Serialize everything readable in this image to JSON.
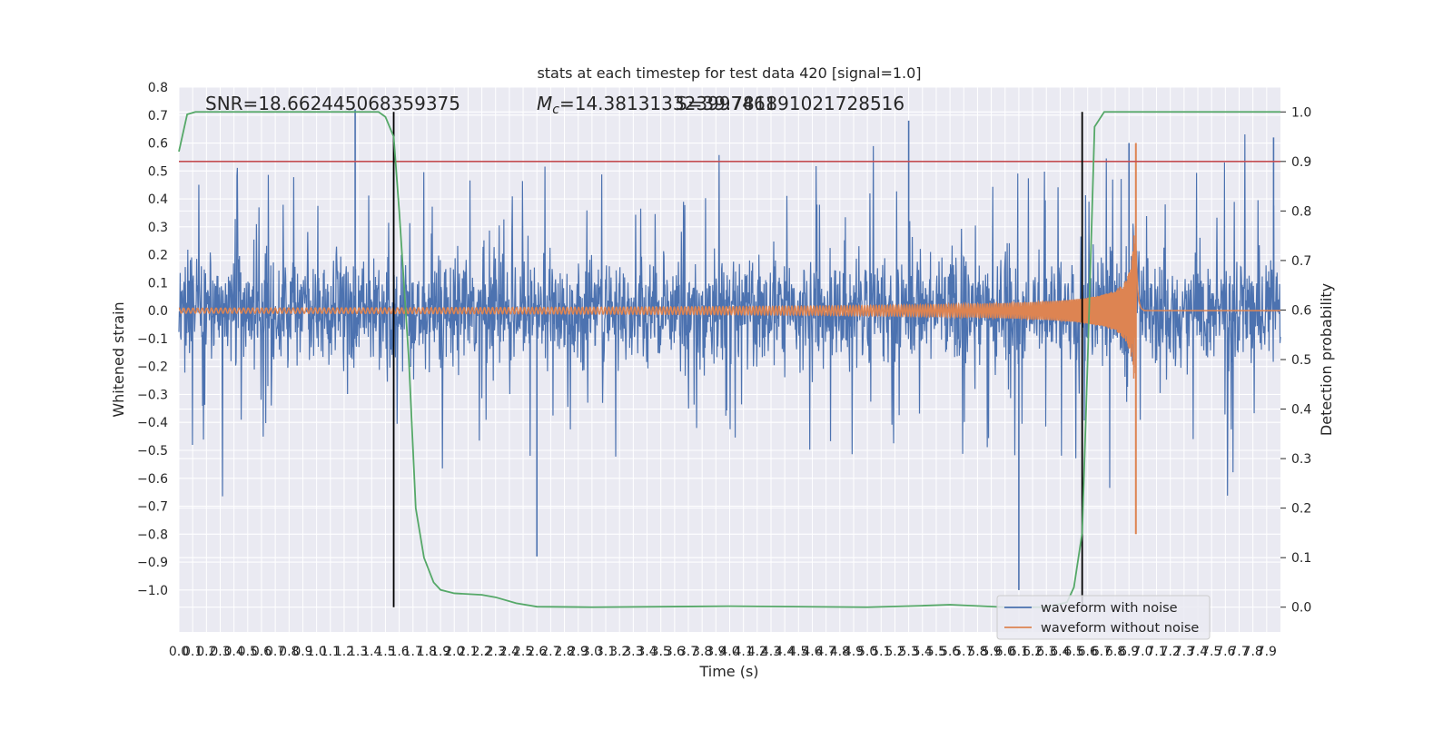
{
  "chart_data": {
    "type": "line",
    "title": "stats at each timestep for test data 420 [signal=1.0]",
    "xlabel": "Time (s)",
    "ylabel": "Whitened strain",
    "y2label": "Detection probability",
    "xlim": [
      0,
      8
    ],
    "ylim": [
      -1.15,
      0.8
    ],
    "y2lim": [
      -0.05,
      1.05
    ],
    "xticks": [
      "0.0",
      "0.1",
      "0.2",
      "0.3",
      "0.4",
      "0.5",
      "0.6",
      "0.7",
      "0.8",
      "0.9",
      "1.0",
      "1.1",
      "1.2",
      "1.3",
      "1.4",
      "1.5",
      "1.6",
      "1.7",
      "1.8",
      "1.9",
      "2.0",
      "2.1",
      "2.2",
      "2.3",
      "2.4",
      "2.5",
      "2.6",
      "2.7",
      "2.8",
      "2.9",
      "3.0",
      "3.1",
      "3.2",
      "3.3",
      "3.4",
      "3.5",
      "3.6",
      "3.7",
      "3.8",
      "3.9",
      "4.0",
      "4.1",
      "4.2",
      "4.3",
      "4.4",
      "4.5",
      "4.6",
      "4.7",
      "4.8",
      "4.9",
      "5.0",
      "5.1",
      "5.2",
      "5.3",
      "5.4",
      "5.5",
      "5.6",
      "5.7",
      "5.8",
      "5.9",
      "6.0",
      "6.1",
      "6.2",
      "6.3",
      "6.4",
      "6.5",
      "6.6",
      "6.7",
      "6.8",
      "6.9",
      "7.0",
      "7.1",
      "7.2",
      "7.3",
      "7.4",
      "7.5",
      "7.6",
      "7.7",
      "7.8",
      "7.9"
    ],
    "yticks": [
      "0.8",
      "0.7",
      "0.6",
      "0.5",
      "0.4",
      "0.3",
      "0.2",
      "0.1",
      "0.0",
      "−0.1",
      "−0.2",
      "−0.3",
      "−0.4",
      "−0.5",
      "−0.6",
      "−0.7",
      "−0.8",
      "−0.9",
      "−1.0"
    ],
    "y2ticks": [
      "1.0",
      "0.9",
      "0.8",
      "0.7",
      "0.6",
      "0.5",
      "0.4",
      "0.3",
      "0.2",
      "0.1",
      "0.0"
    ],
    "annotations": {
      "snr": "SNR=18.662445068359375",
      "mc_symbol": "M",
      "mc_sub": "c",
      "mc_value": "=14.381313323997461",
      "s_value": "S=39.781891021728516"
    },
    "threshold": 0.9,
    "vlines": [
      1.56,
      6.56
    ],
    "series": [
      {
        "name": "waveform with noise",
        "color": "#4c72b0",
        "description": "whitened noisy strain, amplitude within about -1.0 to 0.72",
        "sample_peaks": [
          {
            "x": 1.28,
            "y": 0.72
          },
          {
            "x": 2.6,
            "y": -0.88
          },
          {
            "x": 5.3,
            "y": 0.68
          },
          {
            "x": 6.1,
            "y": -1.0
          },
          {
            "x": 6.9,
            "y": 0.6
          },
          {
            "x": 7.95,
            "y": 0.62
          }
        ]
      },
      {
        "name": "waveform without noise",
        "color": "#dd8452",
        "description": "chirp signal growing to merger near t=6.95 s",
        "merger_time": 6.95,
        "peak_max": 0.6,
        "peak_min": -0.8
      },
      {
        "name": "detection probability",
        "axis": "right",
        "color": "#55a868",
        "points": [
          [
            0,
            0.92
          ],
          [
            0.06,
            0.995
          ],
          [
            0.12,
            1.0
          ],
          [
            1.45,
            1.0
          ],
          [
            1.5,
            0.99
          ],
          [
            1.56,
            0.95
          ],
          [
            1.6,
            0.8
          ],
          [
            1.67,
            0.5
          ],
          [
            1.72,
            0.2
          ],
          [
            1.78,
            0.1
          ],
          [
            1.85,
            0.05
          ],
          [
            1.9,
            0.035
          ],
          [
            2.0,
            0.028
          ],
          [
            2.2,
            0.025
          ],
          [
            2.3,
            0.02
          ],
          [
            2.45,
            0.008
          ],
          [
            2.6,
            0.001
          ],
          [
            3.0,
            0.0
          ],
          [
            4.0,
            0.002
          ],
          [
            5.0,
            0.0
          ],
          [
            5.4,
            0.003
          ],
          [
            5.6,
            0.005
          ],
          [
            6.0,
            0.0
          ],
          [
            6.3,
            0.0
          ],
          [
            6.45,
            0.01
          ],
          [
            6.5,
            0.04
          ],
          [
            6.56,
            0.15
          ],
          [
            6.6,
            0.5
          ],
          [
            6.65,
            0.97
          ],
          [
            6.72,
            1.0
          ],
          [
            8.0,
            1.0
          ]
        ]
      }
    ],
    "legend": {
      "position": "lower-right",
      "entries": [
        "waveform with noise",
        "waveform without noise"
      ]
    },
    "grid": true
  }
}
